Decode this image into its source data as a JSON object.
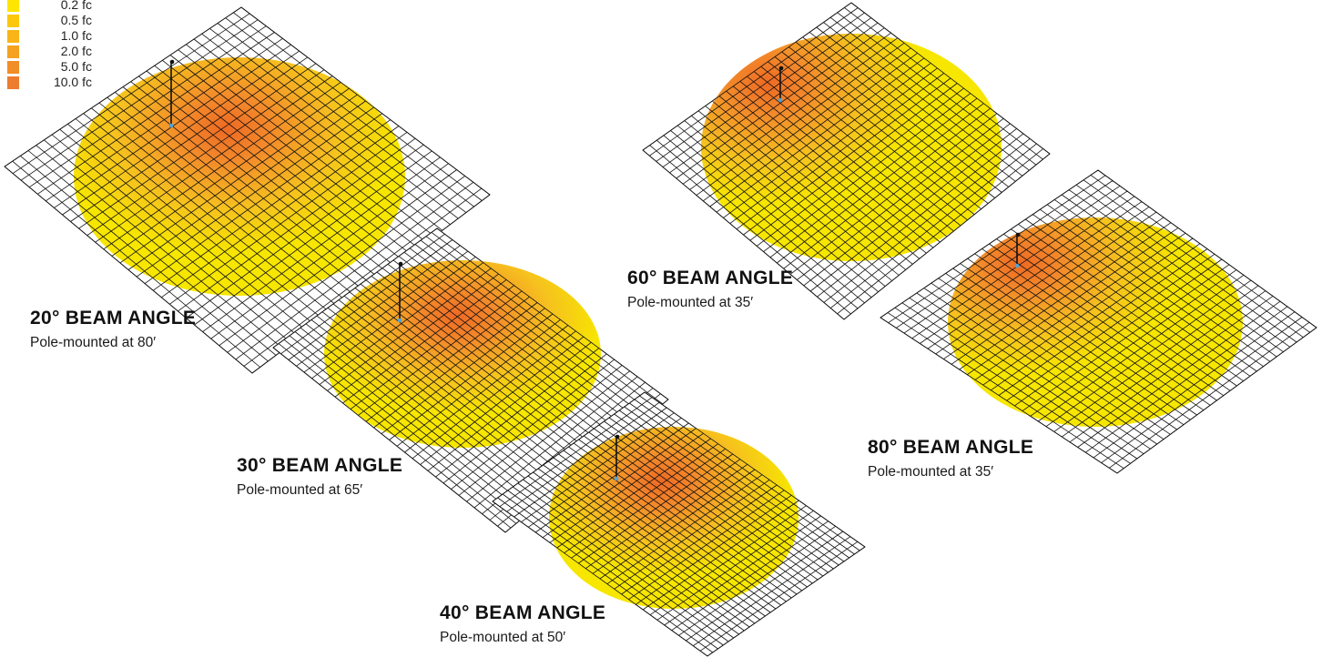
{
  "legend": {
    "items": [
      {
        "label": "0.2 fc",
        "color": "#FFE500"
      },
      {
        "label": "0.5 fc",
        "color": "#FCC80C"
      },
      {
        "label": "1.0 fc",
        "color": "#F9B516"
      },
      {
        "label": "2.0 fc",
        "color": "#F5A220"
      },
      {
        "label": "5.0 fc",
        "color": "#F08E28"
      },
      {
        "label": "10.0 fc",
        "color": "#EC7C2E"
      }
    ]
  },
  "colors": {
    "grid_line": "#111111",
    "pool_outer": "#F7E600",
    "pool_inner": "#EE6A24",
    "pole": "#111111",
    "pole_base": "#4FA3D9"
  },
  "panels": [
    {
      "id": "20",
      "title": "20° BEAM ANGLE",
      "subtitle": "Pole-mounted at 80′"
    },
    {
      "id": "30",
      "title": "30° BEAM ANGLE",
      "subtitle": "Pole-mounted at 65′"
    },
    {
      "id": "40",
      "title": "40° BEAM ANGLE",
      "subtitle": "Pole-mounted at 50′"
    },
    {
      "id": "60",
      "title": "60° BEAM ANGLE",
      "subtitle": "Pole-mounted at 35′"
    },
    {
      "id": "80",
      "title": "80° BEAM ANGLE",
      "subtitle": "Pole-mounted at 35′"
    }
  ]
}
